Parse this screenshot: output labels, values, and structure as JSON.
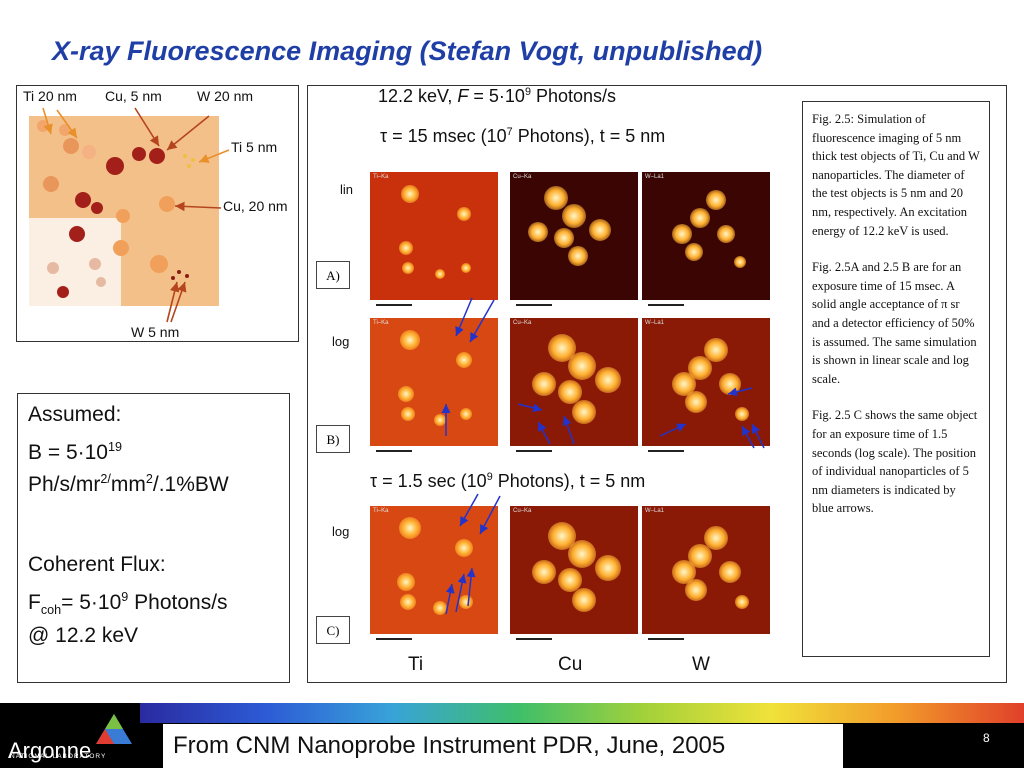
{
  "title": "X-ray Fluorescence Imaging (Stefan Vogt, unpublished)",
  "diagram": {
    "labels": {
      "ti20": "Ti 20 nm",
      "cu5": "Cu, 5 nm",
      "w20": "W 20 nm",
      "ti5": "Ti 5 nm",
      "cu20": "Cu, 20 nm",
      "w5": "W 5 nm"
    }
  },
  "assumed": {
    "heading": "Assumed:",
    "b_prefix": "B = 5·10",
    "b_exp": "19",
    "b_units_a": "Ph/s/mr",
    "b_units_exp1": "2/",
    "b_units_b": "mm",
    "b_units_exp2": "2",
    "b_units_c": "/.1%BW",
    "flux_heading": "Coherent Flux:",
    "f_prefix": "F",
    "f_sub": "coh",
    "f_mid": "= 5·10",
    "f_exp": "9",
    "f_tail": " Photons/s",
    "f_energy": "@ 12.2 keV"
  },
  "figure": {
    "line1_a": "12.2 keV, ",
    "line1_f": "F",
    "line1_b": " = 5·10",
    "line1_exp": "9",
    "line1_c": " Photons/s",
    "line2_a": "τ = 15 msec (10",
    "line2_exp": "7",
    "line2_b": " Photons), t = 5 nm",
    "line3_a": "τ = 1.5 sec (10",
    "line3_exp": "9",
    "line3_b": " Photons), t = 5 nm",
    "row_lin": "lin",
    "row_log1": "log",
    "row_log2": "log",
    "tag_a": "A)",
    "tag_b": "B)",
    "tag_c": "C)",
    "panel_ti": "Ti–Ka",
    "panel_cu": "Cu–Ka",
    "panel_w": "W–La1",
    "elem_ti": "Ti",
    "elem_cu": "Cu",
    "elem_w": "W"
  },
  "caption": {
    "p1": "Fig. 2.5: Simulation of fluorescence imaging of 5 nm thick test objects of Ti, Cu and W nanoparticles. The diameter of the test objects is 5 nm and 20 nm, respectively. An excitation energy of 12.2 keV is used.",
    "p2": "Fig. 2.5A and 2.5 B are for an exposure time of 15 msec. A solid angle acceptance of π sr and a detector efficiency of 50% is assumed. The same simulation is shown  in linear scale and log scale.",
    "p3": "Fig. 2.5 C shows the same object for an exposure time of 1.5 seconds (log scale). The position of individual nanoparticles of 5 nm diameters is indicated by blue arrows."
  },
  "footer": {
    "text": "From CNM Nanoprobe Instrument PDR, June, 2005",
    "page": "8",
    "logo": "Argonne",
    "logo_sub": "NATIONAL LABORATORY"
  },
  "colors": {
    "title": "#1f3fa6",
    "arrow_blue": "#2233cc",
    "arrow_red": "#b5451f",
    "substrate": "#f4c08a"
  }
}
